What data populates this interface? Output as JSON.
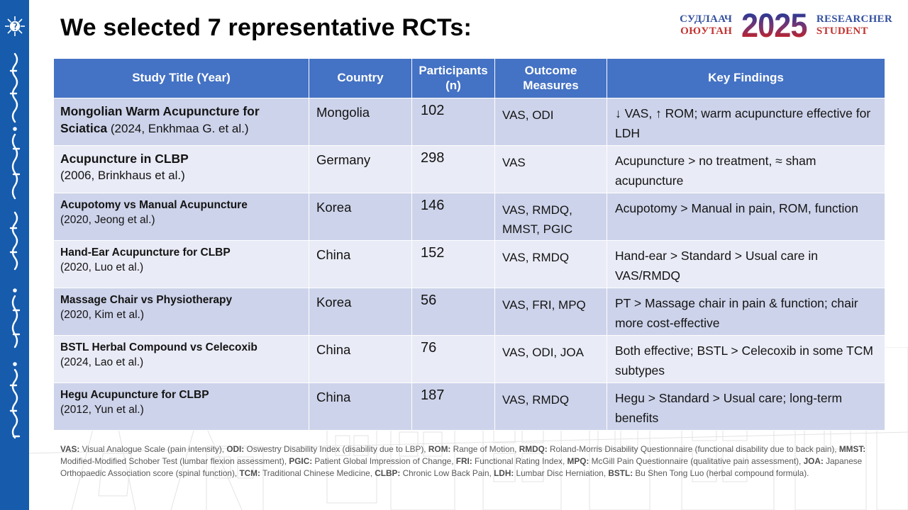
{
  "header": {
    "title": "We selected 7 representative RCTs:"
  },
  "logo": {
    "left_top": "СУДЛААЧ",
    "left_bottom": "ОЮУТАН",
    "year": "2025",
    "right_top": "RESEARCHER",
    "right_bottom": "STUDENT"
  },
  "sidebar": {
    "emblem_icon": "medical-sun-emblem-icon",
    "script_icon": "mongolian-vertical-script"
  },
  "table": {
    "columns": [
      "Study Title (Year)",
      "Country",
      "Participants (n)",
      "Outcome Measures",
      "Key Findings"
    ],
    "rows": [
      {
        "title_bold": "Mongolian Warm Acupuncture for Sciatica",
        "title_rest": " (2024, Enkhmaa G. et al.)",
        "country": "Mongolia",
        "n": "102",
        "outcomes": "VAS, ODI",
        "findings": "↓ VAS, ↑ ROM; warm acupuncture effective for LDH"
      },
      {
        "title_bold": "Acupuncture in CLBP",
        "title_rest": "(2006, Brinkhaus et al.)",
        "country": "Germany",
        "n": "298",
        "outcomes": "VAS",
        "findings": "Acupuncture > no treatment, ≈ sham acupuncture"
      },
      {
        "title_bold": "Acupotomy vs Manual Acupuncture",
        "title_rest": "(2020, Jeong et al.)",
        "country": "Korea",
        "n": "146",
        "outcomes": "VAS, RMDQ, MMST, PGIC",
        "findings": "Acupotomy > Manual in pain, ROM, function"
      },
      {
        "title_bold": "Hand-Ear Acupuncture for CLBP",
        "title_rest": "(2020, Luo et al.)",
        "country": "China",
        "n": "152",
        "outcomes": "VAS, RMDQ",
        "findings": "Hand-ear > Standard > Usual care in VAS/RMDQ"
      },
      {
        "title_bold": "Massage Chair vs Physiotherapy",
        "title_rest": "(2020, Kim et al.)",
        "country": "Korea",
        "n": "56",
        "outcomes": "VAS, FRI, MPQ",
        "findings": "PT > Massage chair in pain & function; chair more cost-effective"
      },
      {
        "title_bold": "BSTL Herbal Compound vs Celecoxib",
        "title_rest": "(2024, Lao et al.)",
        "country": "China",
        "n": "76",
        "outcomes": "VAS, ODI, JOA",
        "findings": "Both effective; BSTL > Celecoxib in some TCM subtypes"
      },
      {
        "title_bold": "Hegu Acupuncture for CLBP",
        "title_rest": "(2012, Yun et al.)",
        "country": "China",
        "n": "187",
        "outcomes": "VAS, RMDQ",
        "findings": "Hegu > Standard > Usual care; long-term benefits"
      }
    ]
  },
  "footnote": {
    "segments": [
      {
        "abbr": "VAS:",
        "desc": " Visual Analogue Scale (pain intensity), "
      },
      {
        "abbr": "ODI:",
        "desc": " Oswestry Disability Index (disability due to LBP), "
      },
      {
        "abbr": "ROM:",
        "desc": " Range of Motion, "
      },
      {
        "abbr": "RMDQ:",
        "desc": " Roland-Morris Disability Questionnaire (functional disability due to back pain), "
      },
      {
        "abbr": "MMST:",
        "desc": " Modified-Modified Schober Test (lumbar flexion assessment), "
      },
      {
        "abbr": "PGIC:",
        "desc": " Patient Global Impression of Change, "
      },
      {
        "abbr": "FRI:",
        "desc": " Functional Rating Index, "
      },
      {
        "abbr": "MPQ:",
        "desc": " McGill Pain Questionnaire (qualitative pain assessment), "
      },
      {
        "abbr": "JOA:",
        "desc": " Japanese Orthopaedic Association score (spinal function), "
      },
      {
        "abbr": "TCM:",
        "desc": " Traditional Chinese Medicine, "
      },
      {
        "abbr": "CLBP:",
        "desc": " Chronic Low Back Pain, "
      },
      {
        "abbr": "LDH:",
        "desc": " Lumbar Disc Herniation, "
      },
      {
        "abbr": "BSTL:",
        "desc": " Bu Shen Tong Luo (herbal compound formula)."
      }
    ]
  },
  "colors": {
    "sidebar_blue": "#165BAC",
    "table_header_blue": "#4472C4",
    "row_dark": "#CDD3EA",
    "row_light": "#E9EBF6",
    "logo_blue": "#34509F",
    "logo_red": "#C23430",
    "footnote_gray": "#595959"
  }
}
